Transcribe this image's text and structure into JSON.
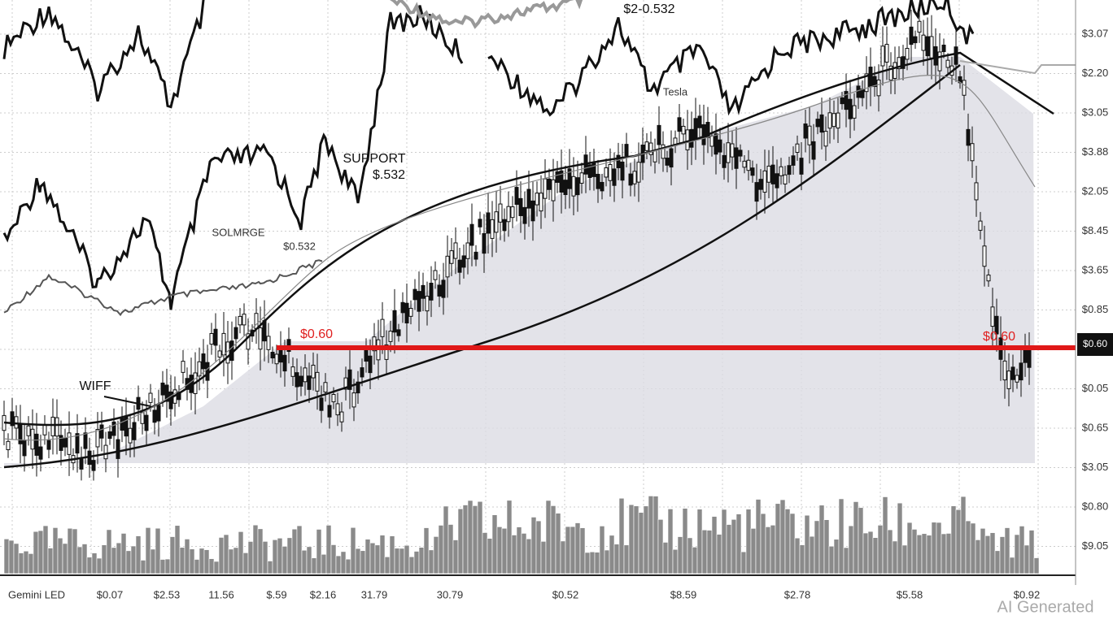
{
  "annotations": {
    "top": "$2-0.532",
    "support": "SUPPORT",
    "support_value": "$.532",
    "challenge": "SOLMRGE",
    "challenge_value": "$0.532",
    "tesla": "Tesla",
    "wiff": "WIFF",
    "level_left": "$0.60",
    "level_right": "$0.60"
  },
  "price_box": "$0.60",
  "y_axis_labels": [
    "$3.07",
    "$2.20",
    "$3.05",
    "$3.88",
    "$2.05",
    "$8.45",
    "$3.65",
    "$0.85",
    "$0.05",
    "$0.65",
    "$3.05",
    "$0.80",
    "$9.05"
  ],
  "x_axis_labels": [
    "Gemini LED",
    "$0.07",
    "$2.53",
    "11.56",
    "$.59",
    "$2.16",
    "31.79",
    "30.79",
    "$0.52",
    "$8.59",
    "$2.78",
    "$5.58",
    "$0.92"
  ],
  "watermark": "AI Generated"
}
